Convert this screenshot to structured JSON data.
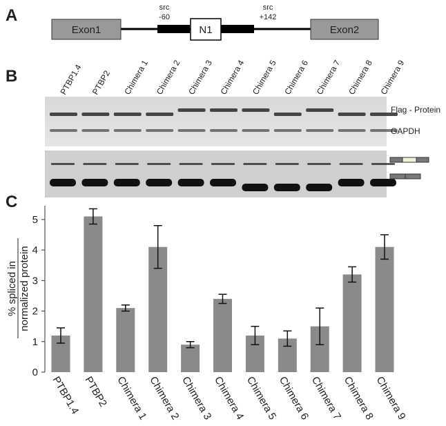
{
  "panels": [
    "A",
    "B",
    "C"
  ],
  "diagram": {
    "exon1": "Exon1",
    "insert": "N1",
    "exon2": "Exon2",
    "left_site": [
      "src",
      "-60"
    ],
    "right_site": [
      "src",
      "+142"
    ]
  },
  "blot": {
    "lanes": [
      "PTBP1.4",
      "PTBP2",
      "Chimera 1",
      "Chimera 2",
      "Chimera 3",
      "Chimera 4",
      "Chimera 5",
      "Chimera 6",
      "Chimera 7",
      "Chimera 8",
      "Chimera 9"
    ],
    "band_labels": [
      "Flag - Protein",
      "GAPDH"
    ]
  },
  "chart_data": {
    "type": "bar",
    "ylabel": [
      "% spliced in",
      "normalized protein"
    ],
    "categories": [
      "PTBP1.4",
      "PTBP2",
      "Chimera 1",
      "Chimera 2",
      "Chimera 3",
      "Chimera 4",
      "Chimera 5",
      "Chimera 6",
      "Chimera 7",
      "Chimera 8",
      "Chimera 9"
    ],
    "values": [
      1.2,
      5.1,
      2.1,
      4.1,
      0.9,
      2.4,
      1.2,
      1.1,
      1.5,
      3.2,
      4.1
    ],
    "errors": [
      0.25,
      0.25,
      0.1,
      0.7,
      0.1,
      0.15,
      0.3,
      0.25,
      0.6,
      0.25,
      0.4
    ],
    "color": "#8a8a8a",
    "ylim": [
      0,
      5.45
    ],
    "yticks": [
      0,
      1,
      2,
      3,
      4,
      5
    ]
  }
}
